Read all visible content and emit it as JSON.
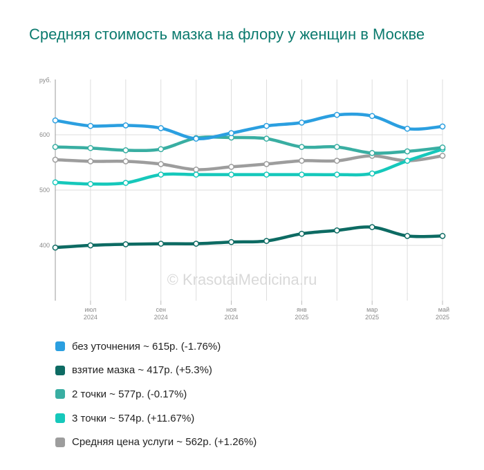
{
  "watermark": "© KrasotaiMedicina.ru",
  "chart_data": {
    "type": "line",
    "title": "Средняя стоимость мазка на флору у женщин в Москве",
    "ylabel": "руб.",
    "xlabel": "",
    "ylim": [
      300,
      700
    ],
    "yticks": [
      400,
      500,
      600
    ],
    "x": [
      "2024-06",
      "2024-07",
      "2024-08",
      "2024-09",
      "2024-10",
      "2024-11",
      "2024-12",
      "2025-01",
      "2025-02",
      "2025-03",
      "2025-04",
      "2025-05"
    ],
    "xticks": [
      {
        "index": 1,
        "month": "июл",
        "year": "2024"
      },
      {
        "index": 3,
        "month": "сен",
        "year": "2024"
      },
      {
        "index": 5,
        "month": "ноя",
        "year": "2024"
      },
      {
        "index": 7,
        "month": "янв",
        "year": "2025"
      },
      {
        "index": 9,
        "month": "мар",
        "year": "2025"
      },
      {
        "index": 11,
        "month": "май",
        "year": "2025"
      }
    ],
    "grid": true,
    "legend_position": "bottom",
    "series": [
      {
        "name": "без уточнения",
        "legend": "без уточнения ~ 615р. (-1.76%)",
        "color": "#2b9fe0",
        "values": [
          626,
          616,
          617,
          612,
          593,
          603,
          616,
          622,
          636,
          634,
          611,
          615
        ]
      },
      {
        "name": "взятие мазка",
        "legend": "взятие мазка ~ 417р. (+5.3%)",
        "color": "#0d6b63",
        "values": [
          396,
          400,
          402,
          403,
          403,
          406,
          408,
          421,
          427,
          433,
          417,
          417
        ]
      },
      {
        "name": "2 точки",
        "legend": "2 точки ~ 577р. (-0.17%)",
        "color": "#39aea2",
        "values": [
          578,
          576,
          572,
          574,
          594,
          595,
          593,
          578,
          578,
          567,
          570,
          577
        ]
      },
      {
        "name": "3 точки",
        "legend": "3 точки ~ 574р. (+11.67%)",
        "color": "#16c8bb",
        "values": [
          514,
          511,
          513,
          528,
          528,
          528,
          528,
          528,
          528,
          530,
          553,
          574
        ]
      },
      {
        "name": "Средняя цена услуги",
        "legend": "Средняя цена услуги ~ 562р. (+1.26%)",
        "color": "#9d9d9d",
        "values": [
          555,
          552,
          552,
          547,
          537,
          542,
          547,
          553,
          553,
          562,
          553,
          562
        ]
      }
    ]
  }
}
